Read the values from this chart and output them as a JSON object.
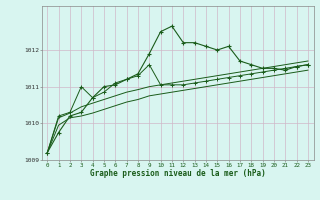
{
  "title": "Graphe pression niveau de la mer (hPa)",
  "bg_color": "#d8f5f0",
  "grid_color": "#d0b8c8",
  "line_color": "#1a5c1a",
  "marker_color": "#1a5c1a",
  "xlim": [
    -0.5,
    23.5
  ],
  "ylim": [
    1009.0,
    1013.2
  ],
  "yticks": [
    1009,
    1010,
    1011,
    1012
  ],
  "xticks": [
    0,
    1,
    2,
    3,
    4,
    5,
    6,
    7,
    8,
    9,
    10,
    11,
    12,
    13,
    14,
    15,
    16,
    17,
    18,
    19,
    20,
    21,
    22,
    23
  ],
  "series1": [
    1009.2,
    1009.75,
    1010.2,
    1010.3,
    1010.7,
    1011.0,
    1011.05,
    1011.2,
    1011.35,
    1011.9,
    1012.5,
    1012.65,
    1012.2,
    1012.2,
    1012.1,
    1012.0,
    1012.1,
    1011.7,
    1011.6,
    1011.5,
    1011.5,
    1011.45,
    1011.55,
    1011.6
  ],
  "series2": [
    1009.2,
    1010.2,
    1010.3,
    1011.0,
    1010.7,
    1010.85,
    1011.1,
    1011.2,
    1011.3,
    1011.6,
    1011.05,
    1011.05,
    1011.05,
    1011.1,
    1011.15,
    1011.2,
    1011.25,
    1011.3,
    1011.35,
    1011.4,
    1011.45,
    1011.5,
    1011.55,
    1011.6
  ],
  "series3": [
    1009.2,
    1010.15,
    1010.28,
    1010.45,
    1010.55,
    1010.65,
    1010.75,
    1010.85,
    1010.92,
    1011.0,
    1011.05,
    1011.1,
    1011.15,
    1011.2,
    1011.25,
    1011.3,
    1011.35,
    1011.4,
    1011.45,
    1011.5,
    1011.55,
    1011.6,
    1011.65,
    1011.7
  ],
  "series4": [
    1009.2,
    1009.95,
    1010.15,
    1010.2,
    1010.28,
    1010.38,
    1010.48,
    1010.58,
    1010.65,
    1010.75,
    1010.8,
    1010.85,
    1010.9,
    1010.95,
    1011.0,
    1011.05,
    1011.1,
    1011.15,
    1011.2,
    1011.25,
    1011.3,
    1011.35,
    1011.4,
    1011.45
  ]
}
